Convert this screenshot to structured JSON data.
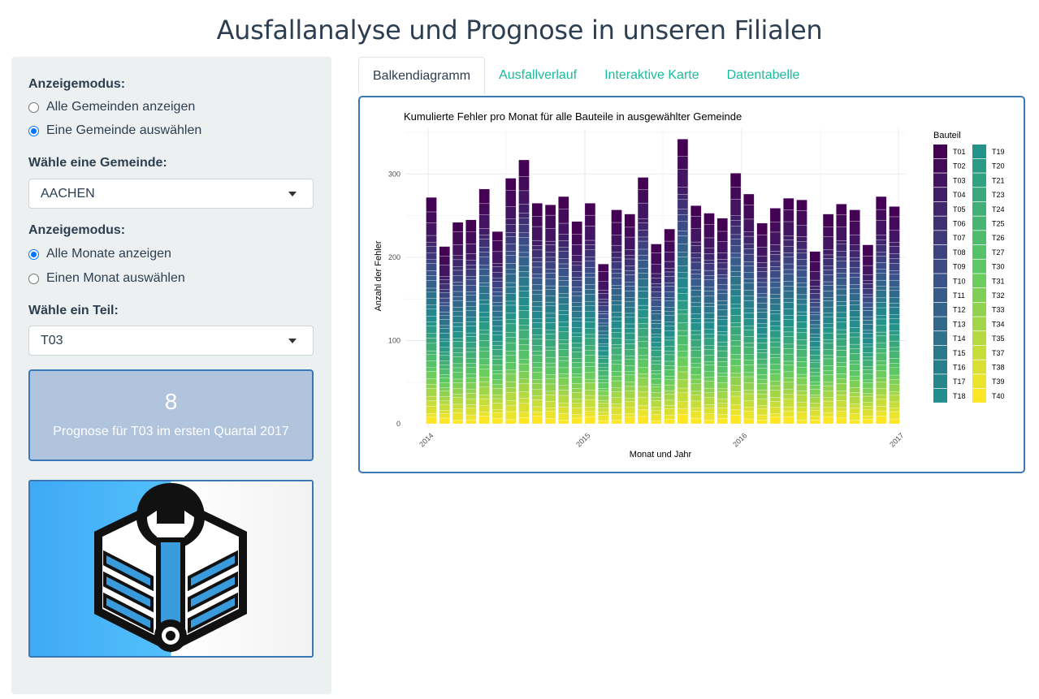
{
  "title": "Ausfallanalyse und Prognose in unseren Filialen",
  "sidebar": {
    "mode1": {
      "label": "Anzeigemodus:",
      "options": [
        "Alle Gemeinden anzeigen",
        "Eine Gemeinde auswählen"
      ],
      "selected": 1
    },
    "gemeinde": {
      "label": "Wähle eine Gemeinde:",
      "value": "AACHEN"
    },
    "mode2": {
      "label": "Anzeigemodus:",
      "options": [
        "Alle Monate anzeigen",
        "Einen Monat auswählen"
      ],
      "selected": 0
    },
    "teil": {
      "label": "Wähle ein Teil:",
      "value": "T03"
    },
    "prognose": {
      "value": "8",
      "subtitle": "Prognose für T03 im ersten Quartal 2017"
    },
    "logo_icon": "wrench-cube-logo-icon"
  },
  "tabs": [
    {
      "label": "Balkendiagramm",
      "active": true
    },
    {
      "label": "Ausfallverlauf",
      "active": false
    },
    {
      "label": "Interaktive Karte",
      "active": false
    },
    {
      "label": "Datentabelle",
      "active": false
    }
  ],
  "colors": {
    "accent": "#18bc9c",
    "border": "#3b78b7",
    "valuebox": "#b0c4de",
    "palette_start": "#440154",
    "palette_mid": "#21918c",
    "palette_end": "#fde725"
  },
  "chart_data": {
    "type": "bar",
    "stacked": true,
    "title": "Kumulierte Fehler pro Monat für alle Bauteile in ausgewählter Gemeinde",
    "xlabel": "Monat und Jahr",
    "ylabel": "Anzahl der Fehler",
    "ylim": [
      0,
      355
    ],
    "yticks": [
      0,
      100,
      200,
      300
    ],
    "xticks": [
      "2014",
      "2015",
      "2016",
      "2017"
    ],
    "grid": true,
    "legend_title": "Bauteil",
    "legend_position": "right",
    "categories": [
      "2014-01",
      "2014-02",
      "2014-03",
      "2014-04",
      "2014-05",
      "2014-06",
      "2014-07",
      "2014-08",
      "2014-09",
      "2014-10",
      "2014-11",
      "2014-12",
      "2015-01",
      "2015-02",
      "2015-03",
      "2015-04",
      "2015-05",
      "2015-06",
      "2015-07",
      "2015-08",
      "2015-09",
      "2015-10",
      "2015-11",
      "2015-12",
      "2016-01",
      "2016-02",
      "2016-03",
      "2016-04",
      "2016-05",
      "2016-06",
      "2016-07",
      "2016-08",
      "2016-09",
      "2016-10",
      "2016-11",
      "2016-12"
    ],
    "series_names": [
      "T01",
      "T02",
      "T03",
      "T04",
      "T05",
      "T06",
      "T07",
      "T08",
      "T09",
      "T10",
      "T11",
      "T12",
      "T13",
      "T14",
      "T15",
      "T16",
      "T17",
      "T18",
      "T19",
      "T20",
      "T21",
      "T23",
      "T24",
      "T25",
      "T26",
      "T27",
      "T30",
      "T31",
      "T32",
      "T33",
      "T34",
      "T35",
      "T37",
      "T38",
      "T39",
      "T40"
    ],
    "totals": [
      272,
      213,
      242,
      245,
      282,
      231,
      295,
      317,
      265,
      263,
      273,
      243,
      265,
      192,
      257,
      252,
      296,
      216,
      234,
      342,
      262,
      253,
      247,
      301,
      276,
      241,
      259,
      271,
      269,
      207,
      252,
      264,
      257,
      215,
      273,
      261
    ]
  }
}
